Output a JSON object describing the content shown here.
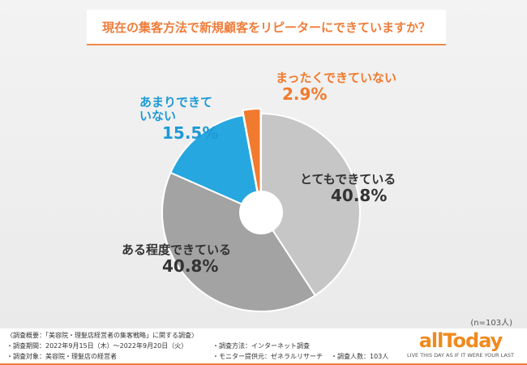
{
  "chart_data": {
    "type": "pie",
    "title": "現在の集客方法で新規顧客をリピーターにできていますか？",
    "categories": [
      "とてもできている",
      "ある程度できている",
      "あまりできていない",
      "まったくできていない"
    ],
    "values": [
      40.8,
      40.8,
      15.5,
      2.9
    ],
    "value_labels": [
      "40.8%",
      "40.8%",
      "15.5%",
      "2.9%"
    ],
    "colors": [
      "#c6c6c6",
      "#a3a3a3",
      "#27a7df",
      "#f07a2e"
    ],
    "label_colors": [
      "#333333",
      "#333333",
      "#1e9ad6",
      "#f07a2e"
    ],
    "donut": true
  },
  "sample_note": "(n=103人)",
  "footer": {
    "overview": "〈調査概要：「美容院・理髪店経営者の集客戦略」に関する調査〉",
    "period": "・調査期間：2022年9月15日（木）～2022年9月20日（火）",
    "method": "・調査方法：インターネット調査",
    "target": "・調査対象：美容院・理髪店の経営者",
    "provider": "・モニター提供元：ゼネラルリサーチ",
    "count": "・調査人数：103人"
  },
  "logo": {
    "name": "allToday",
    "tagline": "LIVE THIS DAY AS IF IT WERE YOUR LAST"
  }
}
